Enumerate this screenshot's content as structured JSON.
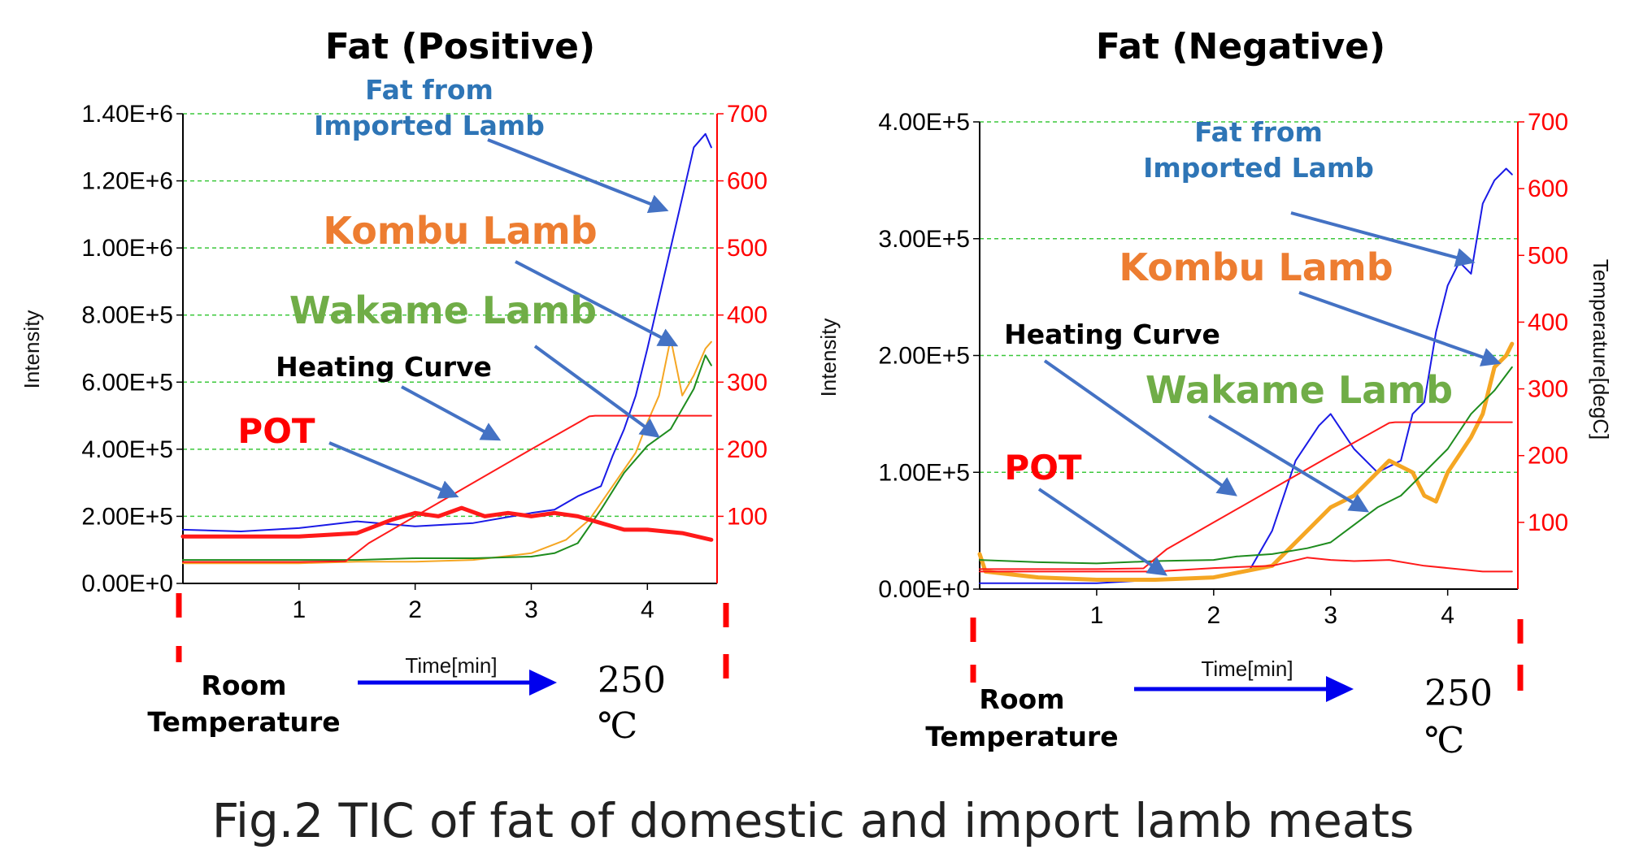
{
  "caption": "Fig.2 TIC of fat of domestic and import lamb meats",
  "colors": {
    "imported": "#1a1ae6",
    "kombu": "#f5a623",
    "wakame": "#1e8c1e",
    "heating": "#ff1a1a",
    "pot": "#ff1a1a",
    "grid": "#3cc83c",
    "arrow": "#4472c4",
    "label_blue": "#2e75b6",
    "label_orange": "#ed7d31",
    "label_green": "#70ad47",
    "label_red": "#ff0000",
    "axis_red": "#ff0000",
    "time_arrow": "#0000ee"
  },
  "chart_data": [
    {
      "type": "line",
      "title": "Fat (Positive)",
      "xlabel": "Time[min]",
      "ylabel": "Intensity",
      "y2label": "",
      "xlim": [
        0,
        4.6
      ],
      "ylim": [
        0,
        1400000
      ],
      "y2lim": [
        0,
        700
      ],
      "x_ticks": [
        "1",
        "2",
        "3",
        "4"
      ],
      "y_ticks": [
        "0.00E+0",
        "2.00E+5",
        "4.00E+5",
        "6.00E+5",
        "8.00E+5",
        "1.00E+6",
        "1.20E+6",
        "1.40E+6"
      ],
      "y2_ticks": [
        "100",
        "200",
        "300",
        "400",
        "500",
        "600",
        "700"
      ],
      "grid": "horizontal dashed",
      "series": [
        {
          "name": "Fat from Imported Lamb",
          "color_key": "imported",
          "axis": "left",
          "width": 2,
          "x": [
            0,
            0.5,
            1.0,
            1.5,
            2.0,
            2.5,
            3.0,
            3.2,
            3.4,
            3.6,
            3.7,
            3.8,
            3.9,
            4.0,
            4.1,
            4.2,
            4.3,
            4.4,
            4.5,
            4.55
          ],
          "y": [
            160000,
            155000,
            165000,
            185000,
            170000,
            180000,
            210000,
            220000,
            260000,
            290000,
            380000,
            460000,
            560000,
            700000,
            850000,
            1000000,
            1150000,
            1300000,
            1340000,
            1300000
          ]
        },
        {
          "name": "Kombu Lamb",
          "color_key": "kombu",
          "axis": "left",
          "width": 2,
          "x": [
            0,
            0.5,
            1.0,
            1.5,
            2.0,
            2.5,
            3.0,
            3.3,
            3.5,
            3.7,
            3.9,
            4.0,
            4.1,
            4.2,
            4.3,
            4.4,
            4.5,
            4.55
          ],
          "y": [
            60000,
            60000,
            60000,
            65000,
            65000,
            70000,
            90000,
            130000,
            190000,
            290000,
            390000,
            480000,
            560000,
            730000,
            560000,
            620000,
            700000,
            720000
          ]
        },
        {
          "name": "Wakame Lamb",
          "color_key": "wakame",
          "axis": "left",
          "width": 2,
          "x": [
            0,
            0.5,
            1.0,
            1.5,
            2.0,
            2.5,
            3.0,
            3.2,
            3.4,
            3.6,
            3.8,
            4.0,
            4.2,
            4.4,
            4.5,
            4.55
          ],
          "y": [
            70000,
            70000,
            70000,
            70000,
            75000,
            75000,
            80000,
            90000,
            120000,
            220000,
            330000,
            410000,
            460000,
            580000,
            680000,
            650000
          ]
        },
        {
          "name": "Heating Curve",
          "color_key": "heating",
          "axis": "right",
          "width": 2,
          "x": [
            0,
            0.5,
            1.0,
            1.4,
            1.6,
            2.0,
            2.5,
            3.0,
            3.5,
            3.55,
            4.0,
            4.5,
            4.55
          ],
          "y": [
            32,
            32,
            32,
            33,
            60,
            100,
            150,
            200,
            249,
            250,
            250,
            250,
            250
          ]
        },
        {
          "name": "POT",
          "color_key": "pot",
          "axis": "left",
          "width": 5,
          "x": [
            0,
            0.5,
            1.0,
            1.5,
            1.8,
            2.0,
            2.2,
            2.4,
            2.6,
            2.8,
            3.0,
            3.2,
            3.4,
            3.6,
            3.8,
            4.0,
            4.3,
            4.55
          ],
          "y": [
            140000,
            140000,
            140000,
            150000,
            190000,
            210000,
            200000,
            225000,
            200000,
            210000,
            200000,
            210000,
            200000,
            180000,
            160000,
            160000,
            150000,
            130000
          ]
        }
      ],
      "annotations": {
        "imported": [
          "Fat from",
          "Imported Lamb"
        ],
        "kombu": "Kombu Lamb",
        "wakame": "Wakame Lamb",
        "heating": "Heating Curve",
        "pot": "POT"
      },
      "start_label": [
        "Room",
        "Temperature"
      ],
      "end_label": [
        "250",
        "℃"
      ]
    },
    {
      "type": "line",
      "title": "Fat (Negative)",
      "xlabel": "Time[min]",
      "ylabel": "Intensity",
      "y2label": "Temperature[degC]",
      "xlim": [
        0,
        4.6
      ],
      "ylim": [
        0,
        400000
      ],
      "y2lim": [
        0,
        700
      ],
      "x_ticks": [
        "1",
        "2",
        "3",
        "4"
      ],
      "y_ticks": [
        "0.00E+0",
        "1.00E+5",
        "2.00E+5",
        "3.00E+5",
        "4.00E+5"
      ],
      "y2_ticks": [
        "100",
        "200",
        "300",
        "400",
        "500",
        "600",
        "700"
      ],
      "grid": "horizontal dashed",
      "series": [
        {
          "name": "Fat from Imported Lamb",
          "color_key": "imported",
          "axis": "left",
          "width": 2,
          "x": [
            0,
            0.5,
            1.0,
            1.5,
            2.0,
            2.3,
            2.5,
            2.7,
            2.9,
            3.0,
            3.2,
            3.4,
            3.6,
            3.7,
            3.8,
            3.9,
            4.0,
            4.1,
            4.2,
            4.3,
            4.4,
            4.5,
            4.55
          ],
          "y": [
            5000,
            5000,
            5000,
            8000,
            10000,
            15000,
            50000,
            110000,
            140000,
            150000,
            120000,
            100000,
            110000,
            150000,
            160000,
            220000,
            260000,
            280000,
            270000,
            330000,
            350000,
            360000,
            355000
          ]
        },
        {
          "name": "Kombu Lamb",
          "color_key": "kombu",
          "axis": "left",
          "width": 5,
          "x": [
            0,
            0.05,
            0.5,
            1.0,
            1.5,
            2.0,
            2.5,
            2.8,
            3.0,
            3.2,
            3.5,
            3.7,
            3.8,
            3.9,
            4.0,
            4.2,
            4.3,
            4.4,
            4.5,
            4.55
          ],
          "y": [
            30000,
            15000,
            10000,
            8000,
            8000,
            10000,
            20000,
            50000,
            70000,
            80000,
            110000,
            100000,
            80000,
            75000,
            100000,
            130000,
            150000,
            190000,
            200000,
            210000
          ]
        },
        {
          "name": "Wakame Lamb",
          "color_key": "wakame",
          "axis": "left",
          "width": 2,
          "x": [
            0,
            0.5,
            1.0,
            1.5,
            2.0,
            2.2,
            2.5,
            2.8,
            3.0,
            3.2,
            3.4,
            3.6,
            3.8,
            4.0,
            4.2,
            4.4,
            4.55
          ],
          "y": [
            25000,
            23000,
            22000,
            24000,
            25000,
            28000,
            30000,
            35000,
            40000,
            55000,
            70000,
            80000,
            100000,
            120000,
            150000,
            170000,
            190000
          ]
        },
        {
          "name": "Heating Curve",
          "color_key": "heating",
          "axis": "right",
          "width": 2,
          "x": [
            0,
            0.5,
            1.0,
            1.4,
            1.6,
            2.0,
            2.5,
            3.0,
            3.5,
            3.55,
            4.0,
            4.5,
            4.55
          ],
          "y": [
            30,
            30,
            30,
            31,
            60,
            100,
            150,
            200,
            249,
            250,
            250,
            250,
            250
          ]
        },
        {
          "name": "POT",
          "color_key": "pot",
          "axis": "left",
          "width": 2,
          "x": [
            0,
            0.5,
            1.0,
            1.5,
            2.0,
            2.5,
            2.8,
            3.0,
            3.2,
            3.5,
            3.8,
            4.0,
            4.3,
            4.55
          ],
          "y": [
            15000,
            15000,
            15000,
            15000,
            18000,
            20000,
            27000,
            25000,
            24000,
            25000,
            20000,
            18000,
            15000,
            15000
          ]
        }
      ],
      "annotations": {
        "imported": [
          "Fat from",
          "Imported Lamb"
        ],
        "kombu": "Kombu Lamb",
        "wakame": "Wakame Lamb",
        "heating": "Heating Curve",
        "pot": "POT"
      },
      "start_label": [
        "Room",
        "Temperature"
      ],
      "end_label": [
        "250",
        "℃"
      ]
    }
  ]
}
